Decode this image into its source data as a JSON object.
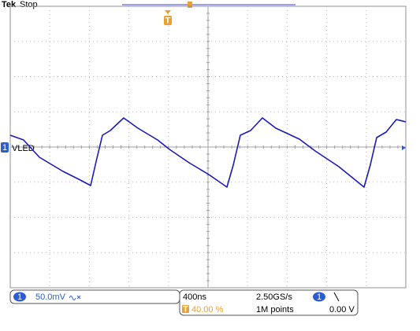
{
  "header": {
    "brand": "Tek",
    "status": "Stop",
    "trigger_marker": "T"
  },
  "chart_data": {
    "type": "line",
    "x": [
      0,
      135,
      295,
      534,
      693,
      813,
      869,
      932,
      1012,
      1147,
      1291,
      1490,
      1610,
      1809,
      2008,
      2191,
      2255,
      2327,
      2430,
      2550,
      2685,
      2924,
      3084,
      3323,
      3578,
      3641,
      3705,
      3801,
      3904,
      4000
    ],
    "series": [
      {
        "name": "VLED",
        "color": "#1a1ab4",
        "values": [
          16.8,
          10.1,
          -14.5,
          -34.6,
          -45.8,
          -54.7,
          -20.1,
          16.8,
          23.5,
          41.3,
          26.8,
          10.1,
          -3.4,
          -22.3,
          -39.1,
          -57.0,
          -25.7,
          16.8,
          23.5,
          41.3,
          26.8,
          11.2,
          -5.6,
          -27.9,
          -57.0,
          -25.7,
          13.4,
          21.2,
          39.1,
          35.8
        ]
      }
    ],
    "xlim": [
      0,
      4000
    ],
    "ylim": [
      -200,
      200
    ]
  },
  "status_bar": {
    "channel": "1",
    "scale": "50.0mV",
    "time_per_div": "400ns",
    "sample_rate": "2.50GS/s",
    "trigger_position": "40.00 %",
    "record_length": "1M points",
    "trigger_level": "0.00 V"
  }
}
